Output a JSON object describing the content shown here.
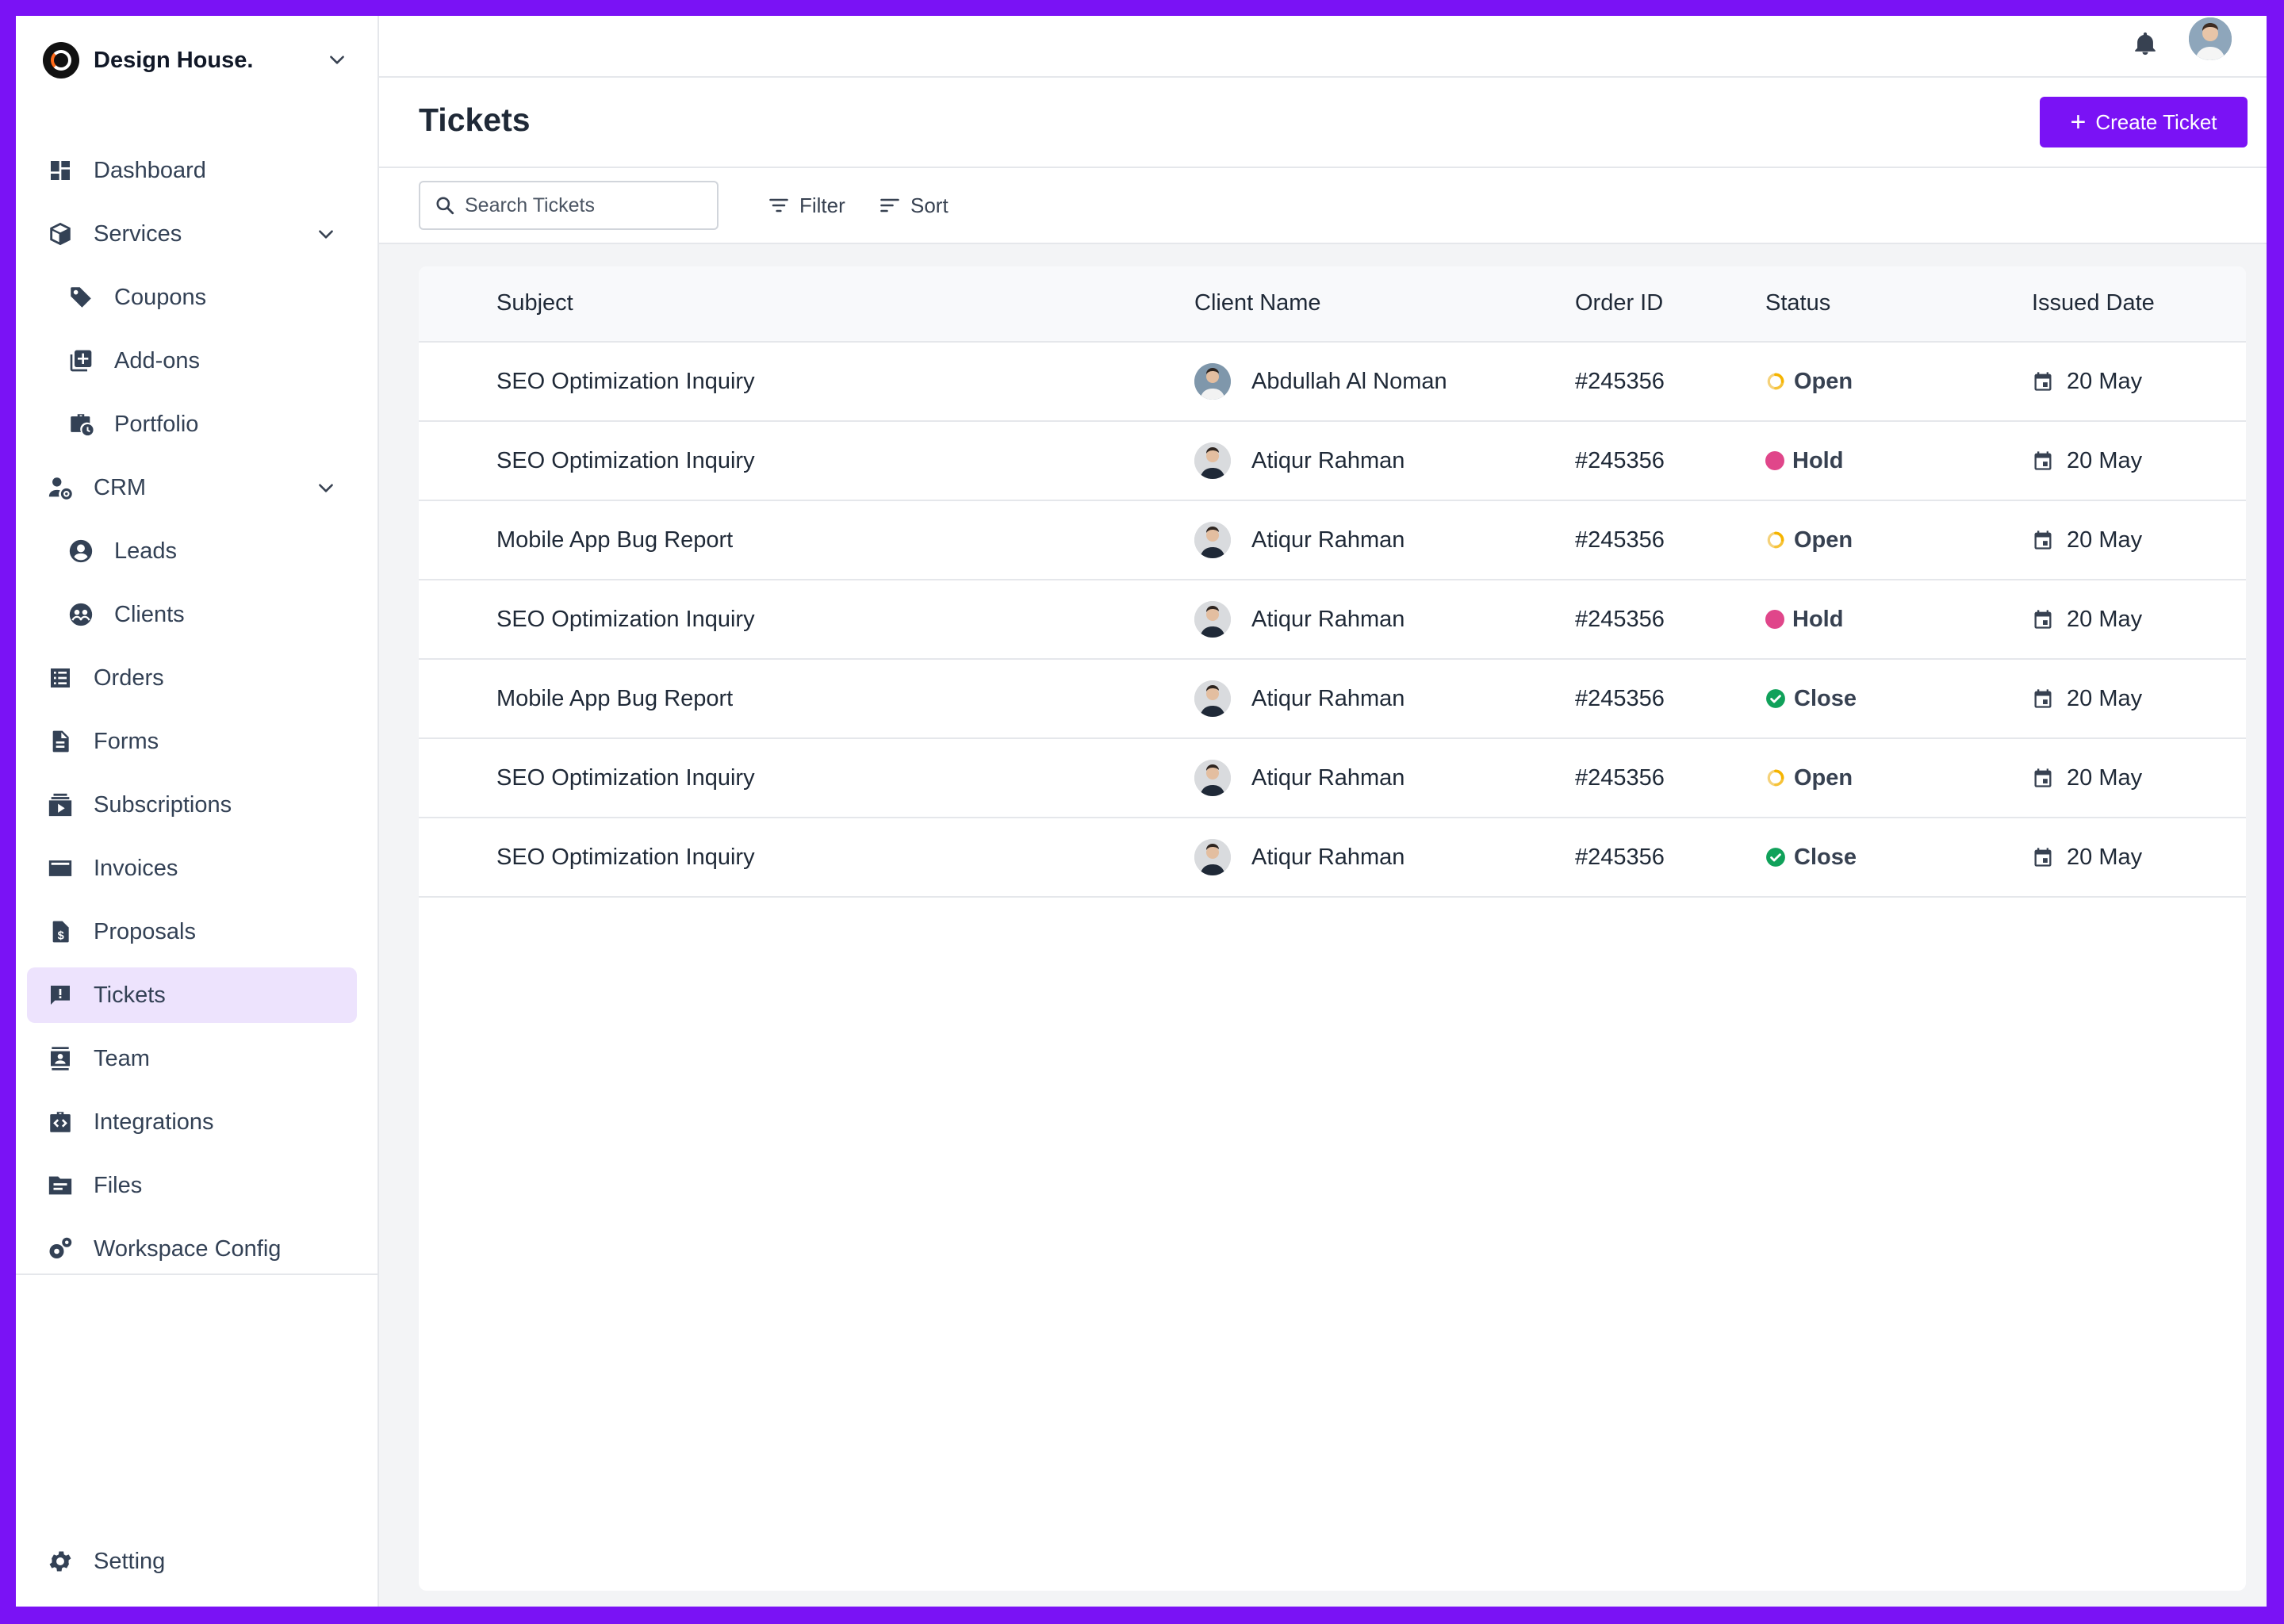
{
  "brand": {
    "name": "Design House."
  },
  "sidebar": {
    "items": [
      {
        "label": "Dashboard",
        "icon": "dashboard-icon"
      },
      {
        "label": "Services",
        "icon": "box-icon"
      },
      {
        "label": "Coupons",
        "icon": "tag-icon"
      },
      {
        "label": "Add-ons",
        "icon": "add-library-icon"
      },
      {
        "label": "Portfolio",
        "icon": "briefcase-clock-icon"
      },
      {
        "label": "CRM",
        "icon": "user-gear-icon"
      },
      {
        "label": "Leads",
        "icon": "user-circle-icon"
      },
      {
        "label": "Clients",
        "icon": "group-circle-icon"
      },
      {
        "label": "Orders",
        "icon": "list-icon"
      },
      {
        "label": "Forms",
        "icon": "document-icon"
      },
      {
        "label": "Subscriptions",
        "icon": "subscriptions-icon"
      },
      {
        "label": "Invoices",
        "icon": "credit-card-icon"
      },
      {
        "label": "Proposals",
        "icon": "dollar-doc-icon"
      },
      {
        "label": "Tickets",
        "icon": "feedback-icon"
      },
      {
        "label": "Team",
        "icon": "contact-card-icon"
      },
      {
        "label": "Integrations",
        "icon": "code-briefcase-icon"
      },
      {
        "label": "Files",
        "icon": "folder-icon"
      },
      {
        "label": "Workspace Config",
        "icon": "gears-icon"
      }
    ],
    "setting_label": "Setting",
    "active": "Tickets"
  },
  "header": {
    "title": "Tickets",
    "create_label": "Create Ticket"
  },
  "toolbar": {
    "search_placeholder": "Search Tickets",
    "filter_label": "Filter",
    "sort_label": "Sort"
  },
  "table": {
    "columns": [
      "Subject",
      "Client Name",
      "Order ID",
      "Status",
      "Issued Date"
    ],
    "rows": [
      {
        "subject": "SEO Optimization Inquiry",
        "client": "Abdullah Al Noman",
        "order_id": "#245356",
        "status": "Open",
        "date": "20 May"
      },
      {
        "subject": "SEO Optimization Inquiry",
        "client": "Atiqur Rahman",
        "order_id": "#245356",
        "status": "Hold",
        "date": "20 May"
      },
      {
        "subject": "Mobile App Bug Report",
        "client": "Atiqur Rahman",
        "order_id": "#245356",
        "status": "Open",
        "date": "20 May"
      },
      {
        "subject": "SEO Optimization Inquiry",
        "client": "Atiqur Rahman",
        "order_id": "#245356",
        "status": "Hold",
        "date": "20 May"
      },
      {
        "subject": "Mobile App Bug Report",
        "client": "Atiqur Rahman",
        "order_id": "#245356",
        "status": "Close",
        "date": "20 May"
      },
      {
        "subject": "SEO Optimization Inquiry",
        "client": "Atiqur Rahman",
        "order_id": "#245356",
        "status": "Open",
        "date": "20 May"
      },
      {
        "subject": "SEO Optimization Inquiry",
        "client": "Atiqur Rahman",
        "order_id": "#245356",
        "status": "Close",
        "date": "20 May"
      }
    ]
  },
  "colors": {
    "accent": "#7a12f5",
    "open": "#f5b400",
    "hold": "#e0468a",
    "close": "#10a15a",
    "active_bg": "#ede3fd"
  }
}
